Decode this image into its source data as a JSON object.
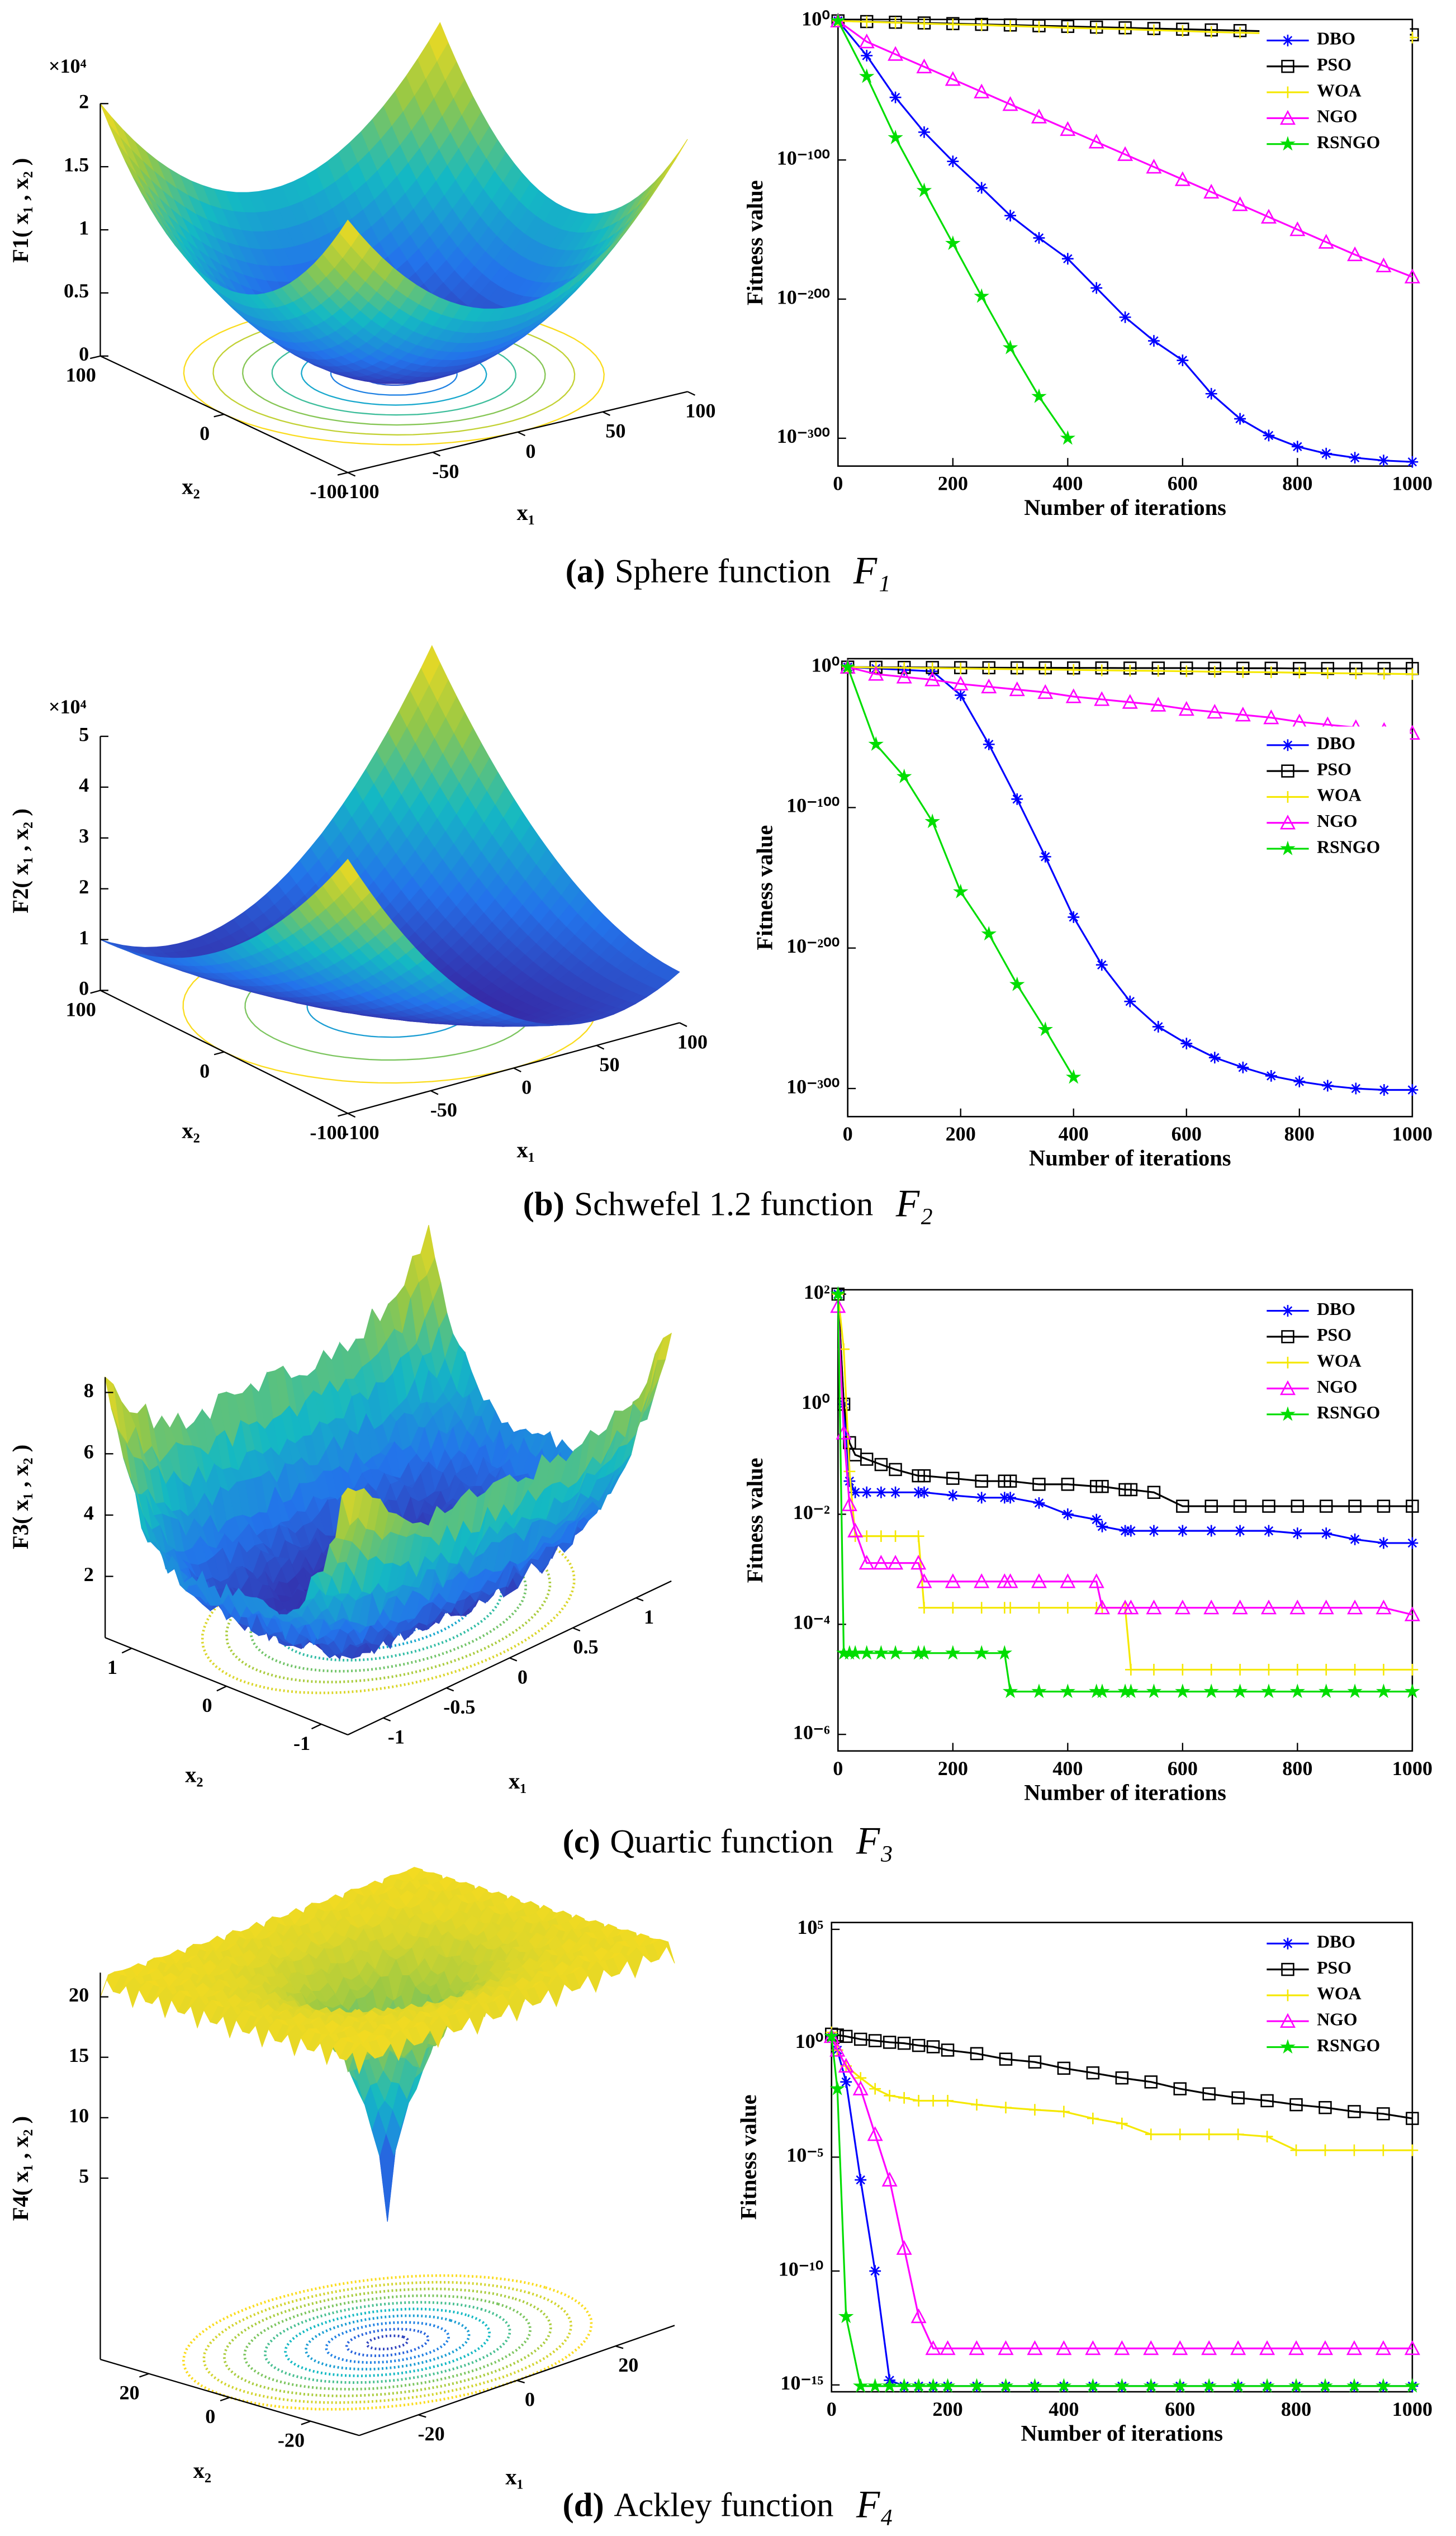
{
  "chart_data": [
    {
      "type": "surface",
      "zlabel": "F1( x₁ , x₂ )",
      "xlabel": "x₁",
      "ylabel": "x₂",
      "zscale_label": "×10⁴",
      "xlim": [
        -100,
        100
      ],
      "ylim": [
        -100,
        100
      ],
      "zlim": [
        0,
        2
      ],
      "xticks": [
        -100,
        -50,
        0,
        50,
        100
      ],
      "yticks": [
        -100,
        0,
        100
      ],
      "zticks": [
        0,
        0.5,
        1,
        1.5,
        2
      ]
    },
    {
      "type": "line",
      "xlabel": "Number of iterations",
      "ylabel": "Fitness value",
      "yscale": "log",
      "legend": "upper right",
      "x": [
        0,
        50,
        100,
        150,
        200,
        250,
        300,
        350,
        400,
        450,
        500,
        550,
        600,
        650,
        700,
        750,
        800,
        850,
        900,
        950,
        1000
      ],
      "xlim": [
        0,
        1000
      ],
      "xticks": [
        0,
        200,
        400,
        600,
        800,
        1000
      ],
      "ylim": [
        1e-320,
        10
      ],
      "yticks": [
        {
          "value": 1,
          "label": "10⁰"
        },
        {
          "value": 1e-100,
          "label": "10⁻¹⁰⁰"
        },
        {
          "value": 1e-200,
          "label": "10⁻²⁰⁰"
        },
        {
          "value": 1e-300,
          "label": "10⁻³⁰⁰"
        }
      ],
      "series": [
        {
          "name": "DBO",
          "color": "#0000ff",
          "marker": "asterisk",
          "values": [
            1,
            1e-25,
            1e-55,
            1e-80,
            1e-101,
            1e-120,
            1e-140,
            1e-156,
            1e-171,
            1e-192,
            1e-213,
            1e-230,
            1e-244,
            1e-268,
            1e-286,
            1e-298,
            1e-306,
            1e-311,
            1e-314,
            1e-316,
            1e-317
          ]
        },
        {
          "name": "PSO",
          "color": "#000000",
          "marker": "square",
          "values": [
            1,
            0.3,
            0.1,
            0.03,
            0.01,
            0.003,
            0.001,
            0.0003,
            0.0001,
            3e-05,
            1e-05,
            3e-06,
            1e-06,
            3e-07,
            1e-07,
            3e-08,
            1e-08,
            3e-09,
            1e-09,
            3e-10,
            1e-10
          ]
        },
        {
          "name": "WOA",
          "color": "#f5e800",
          "marker": "plus",
          "values": [
            1,
            0.2,
            0.05,
            0.01,
            0.003,
            0.001,
            0.0002,
            5e-05,
            1e-05,
            3e-06,
            1e-06,
            2e-07,
            5e-08,
            1e-08,
            3e-09,
            1e-09,
            2e-10,
            5e-11,
            1e-11,
            3e-12,
            1e-12
          ]
        },
        {
          "name": "NGO",
          "color": "#ff00ff",
          "marker": "triangle",
          "values": [
            1,
            1e-15,
            1e-24,
            1e-33,
            1e-42,
            1e-51,
            1e-60,
            1e-69,
            1e-78,
            1e-87,
            1e-96,
            1e-105,
            1e-114,
            1e-123,
            1e-132,
            1e-141,
            1e-150,
            1e-159,
            1e-168,
            1e-176,
            1e-184
          ]
        },
        {
          "name": "RSNGO",
          "color": "#00dd00",
          "marker": "star",
          "values": [
            1,
            1e-40,
            1e-84,
            1e-122,
            1e-160,
            1e-198,
            1e-235,
            1e-270,
            1e-300,
            null,
            null,
            null,
            null,
            null,
            null,
            null,
            null,
            null,
            null,
            null,
            null
          ]
        }
      ]
    },
    {
      "type": "surface",
      "zlabel": "F2( x₁ , x₂ )",
      "xlabel": "x₁",
      "ylabel": "x₂",
      "zscale_label": "×10⁴",
      "xlim": [
        -100,
        100
      ],
      "ylim": [
        -100,
        100
      ],
      "zlim": [
        0,
        5
      ],
      "xticks": [
        -100,
        -50,
        0,
        50,
        100
      ],
      "yticks": [
        -100,
        0,
        100
      ],
      "zticks": [
        0,
        1,
        2,
        3,
        4,
        5
      ]
    },
    {
      "type": "line",
      "xlabel": "Number of iterations",
      "ylabel": "Fitness value",
      "yscale": "log",
      "legend": "right",
      "x": [
        0,
        50,
        100,
        150,
        200,
        250,
        300,
        350,
        400,
        450,
        500,
        550,
        600,
        650,
        700,
        750,
        800,
        850,
        900,
        950,
        1000
      ],
      "xlim": [
        0,
        1000
      ],
      "xticks": [
        0,
        200,
        400,
        600,
        800,
        1000
      ],
      "ylim": [
        1e-320,
        1000000.0
      ],
      "yticks": [
        {
          "value": 1,
          "label": "10⁰"
        },
        {
          "value": 1e-100,
          "label": "10⁻¹⁰⁰"
        },
        {
          "value": 1e-200,
          "label": "10⁻²⁰⁰"
        },
        {
          "value": 1e-300,
          "label": "10⁻³⁰⁰"
        }
      ],
      "series": [
        {
          "name": "DBO",
          "color": "#0000ff",
          "marker": "asterisk",
          "values": [
            1,
            0.1,
            0.01,
            0.001,
            1e-20,
            1e-55,
            1e-94,
            1e-135,
            1e-178,
            1e-212,
            1e-238,
            1e-256,
            1e-268,
            1e-278,
            1e-285,
            1e-291,
            1e-295,
            1e-298,
            1e-300,
            1e-301,
            1e-301
          ]
        },
        {
          "name": "PSO",
          "color": "#000000",
          "marker": "square",
          "values": [
            1,
            0.8,
            0.6,
            0.5,
            0.4,
            0.35,
            0.3,
            0.3,
            0.25,
            0.25,
            0.2,
            0.2,
            0.2,
            0.15,
            0.15,
            0.15,
            0.1,
            0.1,
            0.1,
            0.1,
            0.1
          ]
        },
        {
          "name": "WOA",
          "color": "#f5e800",
          "marker": "plus",
          "values": [
            1,
            0.5,
            0.3,
            0.2,
            0.1,
            0.05,
            0.03,
            0.02,
            0.01,
            0.005,
            0.003,
            0.002,
            0.001,
            0.0005,
            0.0003,
            0.0002,
            0.0001,
            5e-05,
            3e-05,
            2e-05,
            1e-05
          ]
        },
        {
          "name": "NGO",
          "color": "#ff00ff",
          "marker": "triangle",
          "values": [
            1,
            1e-05,
            1e-07,
            1e-09,
            1e-12,
            1e-14,
            1e-16,
            1e-18,
            1e-21,
            1e-23,
            1e-25,
            1e-27,
            1e-30,
            1e-32,
            1e-34,
            1e-36,
            1e-39,
            1e-41,
            1e-43,
            1e-45,
            1e-47
          ]
        },
        {
          "name": "RSNGO",
          "color": "#00dd00",
          "marker": "star",
          "values": [
            1,
            1e-55,
            1e-78,
            1e-110,
            1e-160,
            1e-190,
            1e-226,
            1e-258,
            1e-292,
            null,
            null,
            null,
            null,
            null,
            null,
            null,
            null,
            null,
            null,
            null,
            null
          ]
        }
      ]
    },
    {
      "type": "surface",
      "zlabel": "F3( x₁ , x₂ )",
      "xlabel": "x₁",
      "ylabel": "x₂",
      "xlim": [
        -1.28,
        1.28
      ],
      "ylim": [
        -1.28,
        1.28
      ],
      "zlim": [
        0,
        8.5
      ],
      "xticks": [
        -1,
        -0.5,
        0,
        0.5,
        1
      ],
      "yticks": [
        -1,
        0,
        1
      ],
      "zticks": [
        2,
        4,
        6,
        8
      ]
    },
    {
      "type": "line",
      "xlabel": "Number of iterations",
      "ylabel": "Fitness value",
      "yscale": "log",
      "legend": "upper right",
      "x": [
        0,
        10,
        20,
        30,
        50,
        75,
        100,
        140,
        150,
        200,
        250,
        290,
        300,
        350,
        400,
        450,
        460,
        500,
        510,
        550,
        600,
        650,
        700,
        750,
        800,
        850,
        900,
        950,
        1000
      ],
      "xlim": [
        0,
        1000
      ],
      "xticks": [
        0,
        200,
        400,
        600,
        800,
        1000
      ],
      "ylim": [
        5e-07,
        120
      ],
      "yticks": [
        {
          "value": 100,
          "label": "10²"
        },
        {
          "value": 1,
          "label": "10⁰"
        },
        {
          "value": 0.01,
          "label": "10⁻²"
        },
        {
          "value": 0.0001,
          "label": "10⁻⁴"
        },
        {
          "value": 1e-06,
          "label": "10⁻⁶"
        }
      ],
      "series": [
        {
          "name": "DBO",
          "color": "#0000ff",
          "marker": "asterisk",
          "values": [
            100,
            1,
            0.04,
            0.025,
            0.025,
            0.025,
            0.025,
            0.025,
            0.025,
            0.022,
            0.02,
            0.02,
            0.02,
            0.016,
            0.01,
            0.008,
            0.006,
            0.005,
            0.005,
            0.005,
            0.005,
            0.005,
            0.005,
            0.005,
            0.0045,
            0.0045,
            0.0035,
            0.003,
            0.003
          ]
        },
        {
          "name": "PSO",
          "color": "#000000",
          "marker": "square",
          "values": [
            100,
            1,
            0.2,
            0.12,
            0.1,
            0.08,
            0.065,
            0.05,
            0.05,
            0.045,
            0.04,
            0.04,
            0.04,
            0.035,
            0.035,
            0.032,
            0.032,
            0.028,
            0.028,
            0.025,
            0.014,
            0.014,
            0.014,
            0.014,
            0.014,
            0.014,
            0.014,
            0.014,
            0.014
          ]
        },
        {
          "name": "WOA",
          "color": "#f5e800",
          "marker": "plus",
          "values": [
            100,
            10,
            0.06,
            0.004,
            0.004,
            0.004,
            0.004,
            0.004,
            0.0002,
            0.0002,
            0.0002,
            0.0002,
            0.0002,
            0.0002,
            0.0002,
            0.0002,
            0.0002,
            0.0002,
            1.5e-05,
            1.5e-05,
            1.5e-05,
            1.5e-05,
            1.5e-05,
            1.5e-05,
            1.5e-05,
            1.5e-05,
            1.5e-05,
            1.5e-05,
            1.5e-05
          ]
        },
        {
          "name": "NGO",
          "color": "#ff00ff",
          "marker": "triangle",
          "values": [
            60,
            0.3,
            0.015,
            0.005,
            0.0013,
            0.0013,
            0.0013,
            0.0013,
            0.0006,
            0.0006,
            0.0006,
            0.0006,
            0.0006,
            0.0006,
            0.0006,
            0.0006,
            0.0002,
            0.0002,
            0.0002,
            0.0002,
            0.0002,
            0.0002,
            0.0002,
            0.0002,
            0.0002,
            0.0002,
            0.0002,
            0.0002,
            0.00015
          ]
        },
        {
          "name": "RSNGO",
          "color": "#00dd00",
          "marker": "star",
          "values": [
            100,
            3e-05,
            3e-05,
            3e-05,
            3e-05,
            3e-05,
            3e-05,
            3e-05,
            3e-05,
            3e-05,
            3e-05,
            3e-05,
            6e-06,
            6e-06,
            6e-06,
            6e-06,
            6e-06,
            6e-06,
            6e-06,
            6e-06,
            6e-06,
            6e-06,
            6e-06,
            6e-06,
            6e-06,
            6e-06,
            6e-06,
            6e-06,
            6e-06
          ]
        }
      ]
    },
    {
      "type": "surface",
      "zlabel": "F4( x₁ , x₂ )",
      "xlabel": "x₁",
      "ylabel": "x₂",
      "xlim": [
        -32,
        32
      ],
      "ylim": [
        -32,
        32
      ],
      "zlim": [
        -10,
        22
      ],
      "xticks": [
        -20,
        0,
        20
      ],
      "yticks": [
        -20,
        0,
        20
      ],
      "zticks": [
        5,
        10,
        15,
        20
      ]
    },
    {
      "type": "line",
      "xlabel": "Number of iterations",
      "ylabel": "Fitness value",
      "yscale": "log",
      "legend": "upper right",
      "x": [
        0,
        10,
        25,
        50,
        75,
        100,
        125,
        150,
        175,
        200,
        250,
        300,
        350,
        400,
        450,
        500,
        550,
        600,
        650,
        700,
        750,
        800,
        850,
        900,
        950,
        1000
      ],
      "xlim": [
        0,
        1000
      ],
      "xticks": [
        0,
        200,
        400,
        600,
        800,
        1000
      ],
      "ylim": [
        5e-16,
        200000.0
      ],
      "yticks": [
        {
          "value": 100000,
          "label": "10⁵"
        },
        {
          "value": 1,
          "label": "10⁰"
        },
        {
          "value": 1e-05,
          "label": "10⁻⁵"
        },
        {
          "value": 1e-10,
          "label": "10⁻¹⁰"
        },
        {
          "value": 1e-15,
          "label": "10⁻¹⁵"
        }
      ],
      "series": [
        {
          "name": "DBO",
          "color": "#0000ff",
          "marker": "asterisk",
          "values": [
            2,
            0.5,
            0.02,
            1e-06,
            1e-10,
            1.6e-15,
            8.88e-16,
            8.88e-16,
            8.88e-16,
            8.88e-16,
            8.88e-16,
            8.88e-16,
            8.88e-16,
            8.88e-16,
            8.88e-16,
            8.88e-16,
            8.88e-16,
            8.88e-16,
            8.88e-16,
            8.88e-16,
            8.88e-16,
            8.88e-16,
            8.88e-16,
            8.88e-16,
            8.88e-16,
            8.88e-16
          ]
        },
        {
          "name": "PSO",
          "color": "#000000",
          "marker": "square",
          "values": [
            2.5,
            2.3,
            2,
            1.5,
            1.3,
            1.1,
            1,
            0.8,
            0.7,
            0.5,
            0.35,
            0.2,
            0.15,
            0.08,
            0.05,
            0.03,
            0.02,
            0.01,
            0.006,
            0.004,
            0.003,
            0.002,
            0.0015,
            0.001,
            0.0008,
            0.0005
          ]
        },
        {
          "name": "WOA",
          "color": "#f5e800",
          "marker": "plus",
          "values": [
            3,
            0.5,
            0.1,
            0.03,
            0.01,
            0.005,
            0.004,
            0.003,
            0.003,
            0.003,
            0.002,
            0.0015,
            0.0012,
            0.001,
            0.0005,
            0.0003,
            0.0001,
            0.0001,
            0.0001,
            0.0001,
            8e-05,
            2e-05,
            2e-05,
            2e-05,
            2e-05,
            2e-05
          ]
        },
        {
          "name": "NGO",
          "color": "#ff00ff",
          "marker": "triangle",
          "values": [
            2,
            0.5,
            0.1,
            0.01,
            0.0001,
            1e-06,
            1e-09,
            1e-12,
            4e-14,
            4e-14,
            4e-14,
            4e-14,
            4e-14,
            4e-14,
            4e-14,
            4e-14,
            4e-14,
            4e-14,
            4e-14,
            4e-14,
            4e-14,
            4e-14,
            4e-14,
            4e-14,
            4e-14,
            4e-14
          ]
        },
        {
          "name": "RSNGO",
          "color": "#00dd00",
          "marker": "star",
          "values": [
            2,
            0.01,
            1e-12,
            8.88e-16,
            8.88e-16,
            8.88e-16,
            8.88e-16,
            8.88e-16,
            8.88e-16,
            8.88e-16,
            8.88e-16,
            8.88e-16,
            8.88e-16,
            8.88e-16,
            8.88e-16,
            8.88e-16,
            8.88e-16,
            8.88e-16,
            8.88e-16,
            8.88e-16,
            8.88e-16,
            8.88e-16,
            8.88e-16,
            8.88e-16,
            8.88e-16,
            8.88e-16
          ]
        }
      ]
    }
  ],
  "captions": [
    {
      "tag": "(a)",
      "text": "Sphere function",
      "symbol": "F₁"
    },
    {
      "tag": "(b)",
      "text": "Schwefel 1.2 function",
      "symbol": "F₂"
    },
    {
      "tag": "(c)",
      "text": "Quartic function",
      "symbol": "F₃"
    },
    {
      "tag": "(d)",
      "text": "Ackley function",
      "symbol": "F₄"
    }
  ]
}
